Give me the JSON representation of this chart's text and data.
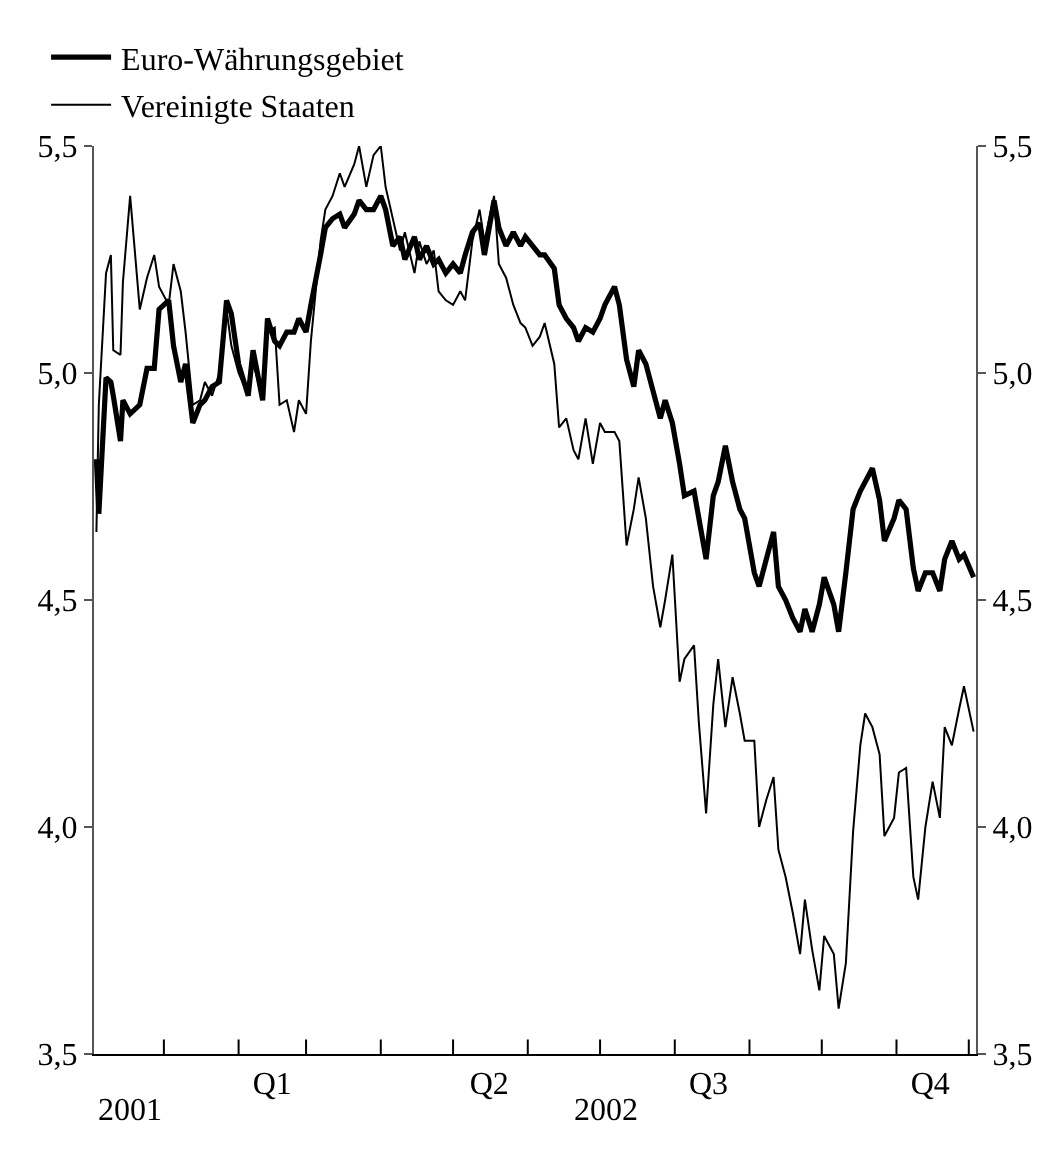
{
  "chart_data": {
    "type": "line",
    "x": [
      "2001-12-04",
      "2001-12-05",
      "2001-12-08",
      "2001-12-10",
      "2001-12-11",
      "2001-12-14",
      "2001-12-15",
      "2001-12-18",
      "2001-12-22",
      "2001-12-25",
      "2001-12-28",
      "2001-12-30",
      "2002-01-03",
      "2002-01-05",
      "2002-01-08",
      "2002-01-10",
      "2002-01-13",
      "2002-01-16",
      "2002-01-18",
      "2002-01-21",
      "2002-01-24",
      "2002-01-27",
      "2002-01-29",
      "2002-02-01",
      "2002-02-05",
      "2002-02-07",
      "2002-02-11",
      "2002-02-13",
      "2002-02-16",
      "2002-02-18",
      "2002-02-21",
      "2002-02-24",
      "2002-02-26",
      "2002-03-01",
      "2002-03-03",
      "2002-03-07",
      "2002-03-09",
      "2002-03-12",
      "2002-03-15",
      "2002-03-17",
      "2002-03-21",
      "2002-03-23",
      "2002-03-26",
      "2002-03-29",
      "2002-04-01",
      "2002-04-03",
      "2002-04-06",
      "2002-04-09",
      "2002-04-11",
      "2002-04-15",
      "2002-04-17",
      "2002-04-20",
      "2002-04-23",
      "2002-04-25",
      "2002-04-28",
      "2002-05-01",
      "2002-05-04",
      "2002-05-06",
      "2002-05-09",
      "2002-05-12",
      "2002-05-14",
      "2002-05-18",
      "2002-05-20",
      "2002-05-23",
      "2002-05-26",
      "2002-05-29",
      "2002-05-31",
      "2002-06-03",
      "2002-06-06",
      "2002-06-08",
      "2002-06-12",
      "2002-06-14",
      "2002-06-17",
      "2002-06-20",
      "2002-06-22",
      "2002-06-25",
      "2002-06-28",
      "2002-07-01",
      "2002-07-03",
      "2002-07-07",
      "2002-07-09",
      "2002-07-12",
      "2002-07-15",
      "2002-07-17",
      "2002-07-20",
      "2002-07-23",
      "2002-07-26",
      "2002-07-28",
      "2002-07-31",
      "2002-08-03",
      "2002-08-05",
      "2002-08-09",
      "2002-08-11",
      "2002-08-14",
      "2002-08-17",
      "2002-08-19",
      "2002-08-22",
      "2002-08-25",
      "2002-08-28",
      "2002-08-30",
      "2002-09-03",
      "2002-09-05",
      "2002-09-08",
      "2002-09-11",
      "2002-09-13",
      "2002-09-16",
      "2002-09-19",
      "2002-09-22",
      "2002-09-24",
      "2002-09-27",
      "2002-09-30",
      "2002-10-02",
      "2002-10-06",
      "2002-10-08",
      "2002-10-11",
      "2002-10-14",
      "2002-10-17",
      "2002-10-19",
      "2002-10-22",
      "2002-10-25",
      "2002-10-27",
      "2002-10-31",
      "2002-11-02",
      "2002-11-05",
      "2002-11-08",
      "2002-11-10",
      "2002-11-13",
      "2002-11-16",
      "2002-11-19",
      "2002-11-21",
      "2002-11-24",
      "2002-11-27",
      "2002-11-29",
      "2002-12-03"
    ],
    "series": [
      {
        "name": "Euro-Währungsgebiet",
        "color": "#000000",
        "values": [
          4.81,
          4.69,
          4.99,
          4.98,
          4.95,
          4.85,
          4.94,
          4.91,
          4.93,
          5.01,
          5.01,
          5.14,
          5.16,
          5.06,
          4.98,
          5.02,
          4.89,
          4.93,
          4.94,
          4.97,
          4.98,
          5.16,
          5.13,
          5.02,
          4.95,
          5.05,
          4.94,
          5.12,
          5.07,
          5.06,
          5.09,
          5.09,
          5.12,
          5.09,
          5.15,
          5.26,
          5.32,
          5.34,
          5.35,
          5.32,
          5.35,
          5.38,
          5.36,
          5.36,
          5.39,
          5.36,
          5.28,
          5.3,
          5.25,
          5.3,
          5.25,
          5.28,
          5.24,
          5.25,
          5.22,
          5.24,
          5.22,
          5.26,
          5.31,
          5.33,
          5.26,
          5.38,
          5.32,
          5.28,
          5.31,
          5.28,
          5.3,
          5.28,
          5.26,
          5.26,
          5.23,
          5.15,
          5.12,
          5.1,
          5.07,
          5.1,
          5.09,
          5.12,
          5.15,
          5.19,
          5.15,
          5.03,
          4.97,
          5.05,
          5.02,
          4.96,
          4.9,
          4.94,
          4.89,
          4.8,
          4.73,
          4.74,
          4.68,
          4.59,
          4.73,
          4.76,
          4.84,
          4.76,
          4.7,
          4.68,
          4.56,
          4.53,
          4.59,
          4.65,
          4.53,
          4.5,
          4.46,
          4.43,
          4.48,
          4.43,
          4.49,
          4.55,
          4.49,
          4.43,
          4.56,
          4.7,
          4.74,
          4.76,
          4.79,
          4.72,
          4.63,
          4.68,
          4.72,
          4.7,
          4.57,
          4.52,
          4.56,
          4.56,
          4.52,
          4.59,
          4.63,
          4.59,
          4.6,
          4.55
        ]
      },
      {
        "name": "Vereinigte Staaten",
        "color": "#000000",
        "values": [
          4.65,
          4.93,
          5.22,
          5.26,
          5.05,
          5.04,
          5.2,
          5.39,
          5.14,
          5.21,
          5.26,
          5.19,
          5.15,
          5.24,
          5.18,
          5.09,
          4.93,
          4.94,
          4.98,
          4.95,
          5.0,
          5.14,
          5.06,
          5.0,
          4.95,
          5.02,
          4.95,
          5.09,
          5.1,
          4.93,
          4.94,
          4.87,
          4.94,
          4.91,
          5.07,
          5.29,
          5.36,
          5.39,
          5.44,
          5.41,
          5.46,
          5.5,
          5.41,
          5.48,
          5.5,
          5.41,
          5.34,
          5.27,
          5.31,
          5.22,
          5.29,
          5.24,
          5.27,
          5.18,
          5.16,
          5.15,
          5.18,
          5.16,
          5.29,
          5.36,
          5.29,
          5.39,
          5.24,
          5.21,
          5.15,
          5.11,
          5.1,
          5.06,
          5.08,
          5.11,
          5.02,
          4.88,
          4.9,
          4.83,
          4.81,
          4.9,
          4.8,
          4.89,
          4.87,
          4.87,
          4.85,
          4.62,
          4.7,
          4.77,
          4.68,
          4.53,
          4.44,
          4.5,
          4.6,
          4.32,
          4.37,
          4.4,
          4.23,
          4.03,
          4.27,
          4.37,
          4.22,
          4.33,
          4.25,
          4.19,
          4.19,
          4.0,
          4.06,
          4.11,
          3.95,
          3.89,
          3.81,
          3.72,
          3.84,
          3.73,
          3.64,
          3.76,
          3.72,
          3.6,
          3.7,
          3.99,
          4.18,
          4.25,
          4.22,
          4.16,
          3.98,
          4.02,
          4.12,
          4.13,
          3.89,
          3.84,
          4.0,
          4.1,
          4.02,
          4.22,
          4.18,
          4.26,
          4.31,
          4.21
        ]
      }
    ],
    "xlim": [
      "2001-12-03",
      "2002-12-04"
    ],
    "xticks": [
      {
        "value": "2002-01-01",
        "label": null
      },
      {
        "value": "2002-02-01",
        "label": null
      },
      {
        "value": "2002-03-01",
        "label": null
      },
      {
        "value": "2002-04-01",
        "label": null
      },
      {
        "value": "2002-05-01",
        "label": null
      },
      {
        "value": "2002-06-01",
        "label": null
      },
      {
        "value": "2002-07-01",
        "label": null
      },
      {
        "value": "2002-08-01",
        "label": null
      },
      {
        "value": "2002-09-01",
        "label": null
      },
      {
        "value": "2002-10-01",
        "label": null
      },
      {
        "value": "2002-11-01",
        "label": null
      },
      {
        "value": "2002-12-01",
        "label": null
      },
      {
        "value": "2002-02-15",
        "label": "Q1"
      },
      {
        "value": "2002-05-16",
        "label": "Q2"
      },
      {
        "value": "2002-08-15",
        "label": "Q3"
      },
      {
        "value": "2002-11-15",
        "label": "Q4"
      }
    ],
    "ylim": [
      3.5,
      5.5
    ],
    "yticks": [
      {
        "value": 3.5,
        "label": "3,5"
      },
      {
        "value": 4.0,
        "label": "4,0"
      },
      {
        "value": 4.5,
        "label": "4,5"
      },
      {
        "value": 5.0,
        "label": "5,0"
      },
      {
        "value": 5.5,
        "label": "5,5"
      }
    ],
    "y2lim": [
      3.5,
      5.5
    ],
    "y2ticks": [
      {
        "value": 3.5,
        "label": "3,5"
      },
      {
        "value": 4.0,
        "label": "4,0"
      },
      {
        "value": 4.5,
        "label": "4,5"
      },
      {
        "value": 5.0,
        "label": "5,0"
      },
      {
        "value": 5.5,
        "label": "5,5"
      }
    ],
    "annotations": [
      "2001",
      "2002"
    ],
    "legend": "top left",
    "grid": false,
    "line_style": "solid",
    "marker": "none"
  }
}
